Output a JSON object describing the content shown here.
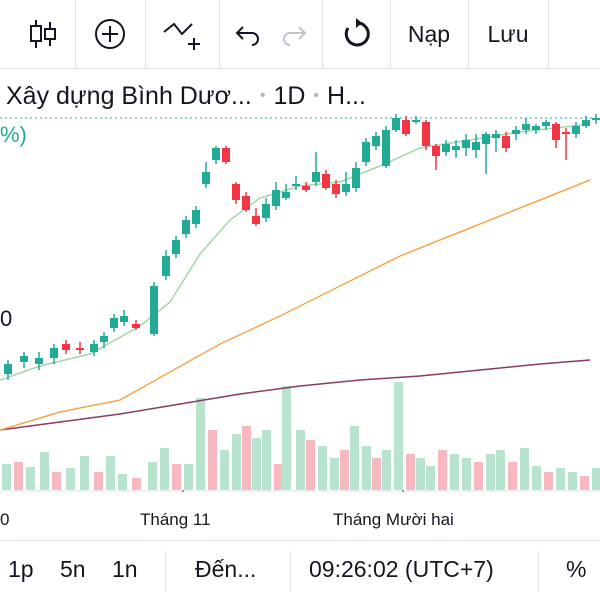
{
  "toolbar": {
    "load_label": "Nạp",
    "save_label": "Lưu"
  },
  "legend": {
    "symbol_name": "Xây dựng Bình Dươ...",
    "interval": "1D",
    "exchange": "H..."
  },
  "axis": {
    "left_pct_fragment": "%)",
    "left_price_fragment": "0",
    "time_labels": [
      "0",
      "Tháng 11",
      "Tháng Mười hai"
    ]
  },
  "bottom_bar": {
    "range_1": "1p",
    "range_2": "5n",
    "range_3": "1n",
    "goto_label": "Đến...",
    "clock": "09:26:02 (UTC+7)",
    "percent_toggle": "%"
  },
  "colors": {
    "up": "#22ab94",
    "down": "#f23645",
    "ma_short": "#a5d6a7",
    "ma_mid": "#f5a84f",
    "ma_long": "#8b3a62",
    "vol_up": "#b7e3cf",
    "vol_down": "#f7b9bf",
    "last_price_line": "#22ab94"
  }
}
